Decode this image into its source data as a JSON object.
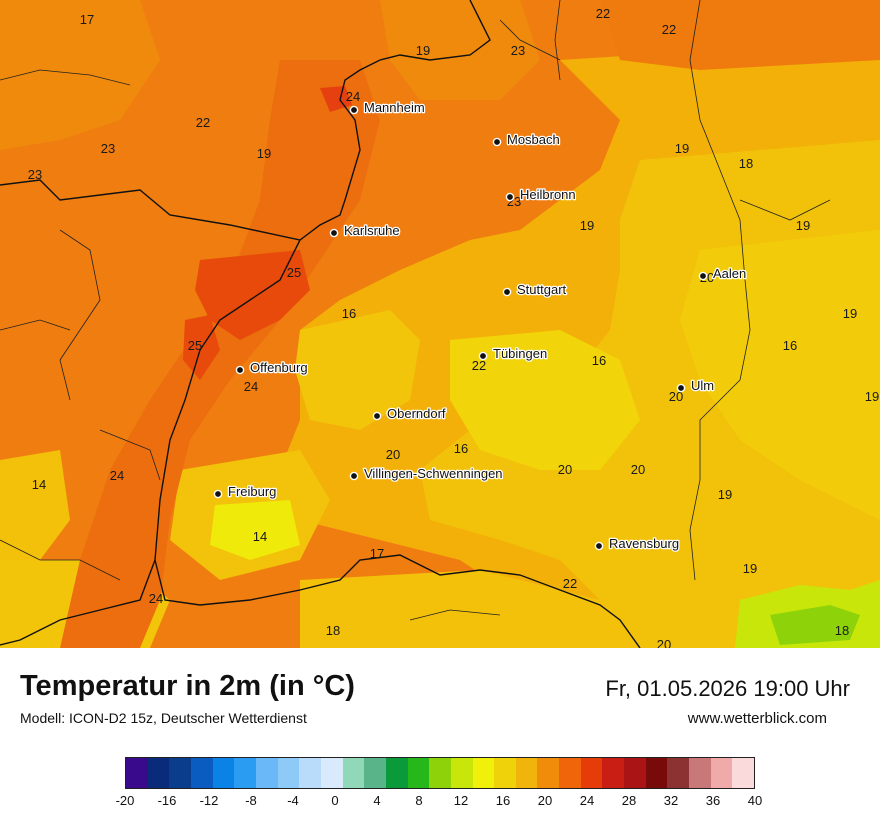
{
  "map": {
    "temperature_labels": [
      "17",
      "22",
      "22",
      "19",
      "23",
      "24",
      "22",
      "23",
      "19",
      "23",
      "19",
      "18",
      "23",
      "19",
      "19",
      "25",
      "16",
      "20",
      "19",
      "25",
      "22",
      "16",
      "16",
      "24",
      "20",
      "19",
      "24",
      "14",
      "20",
      "16",
      "20",
      "20",
      "19",
      "14",
      "17",
      "22",
      "19",
      "24",
      "18",
      "20",
      "18"
    ],
    "cities": [
      "Mannheim",
      "Mosbach",
      "Heilbronn",
      "Karlsruhe",
      "Stuttgart",
      "Aalen",
      "Tübingen",
      "Offenburg",
      "Ulm",
      "Oberndorf",
      "Villingen-Schwenningen",
      "Freiburg",
      "Ravensburg"
    ]
  },
  "footer": {
    "title": "Temperatur in 2m (in °C)",
    "model": "Modell: ICON-D2 15z, Deutscher Wetterdienst",
    "datetime": "Fr, 01.05.2026 19:00 Uhr",
    "website": "www.wetterblick.com"
  },
  "legend": {
    "colors": [
      "#3a0a8c",
      "#0a2a7a",
      "#0a3e8c",
      "#0a5cc0",
      "#0a82e6",
      "#2a9cf2",
      "#6ab8f8",
      "#8ecaf8",
      "#b8dcfa",
      "#d8eafc",
      "#90d8b8",
      "#5ab48a",
      "#0a9a3a",
      "#26b81a",
      "#8ed20a",
      "#c8e60a",
      "#f0f00a",
      "#f0d20a",
      "#f0b40a",
      "#f08c0a",
      "#f0640a",
      "#e63c0a",
      "#c81e14",
      "#aa1414",
      "#780a0a",
      "#8c3232",
      "#c87878",
      "#f0aaaa",
      "#fadada"
    ],
    "ticks": [
      "-20",
      "-16",
      "-12",
      "-8",
      "-4",
      "0",
      "4",
      "8",
      "12",
      "16",
      "20",
      "24",
      "28",
      "32",
      "36",
      "40"
    ]
  }
}
